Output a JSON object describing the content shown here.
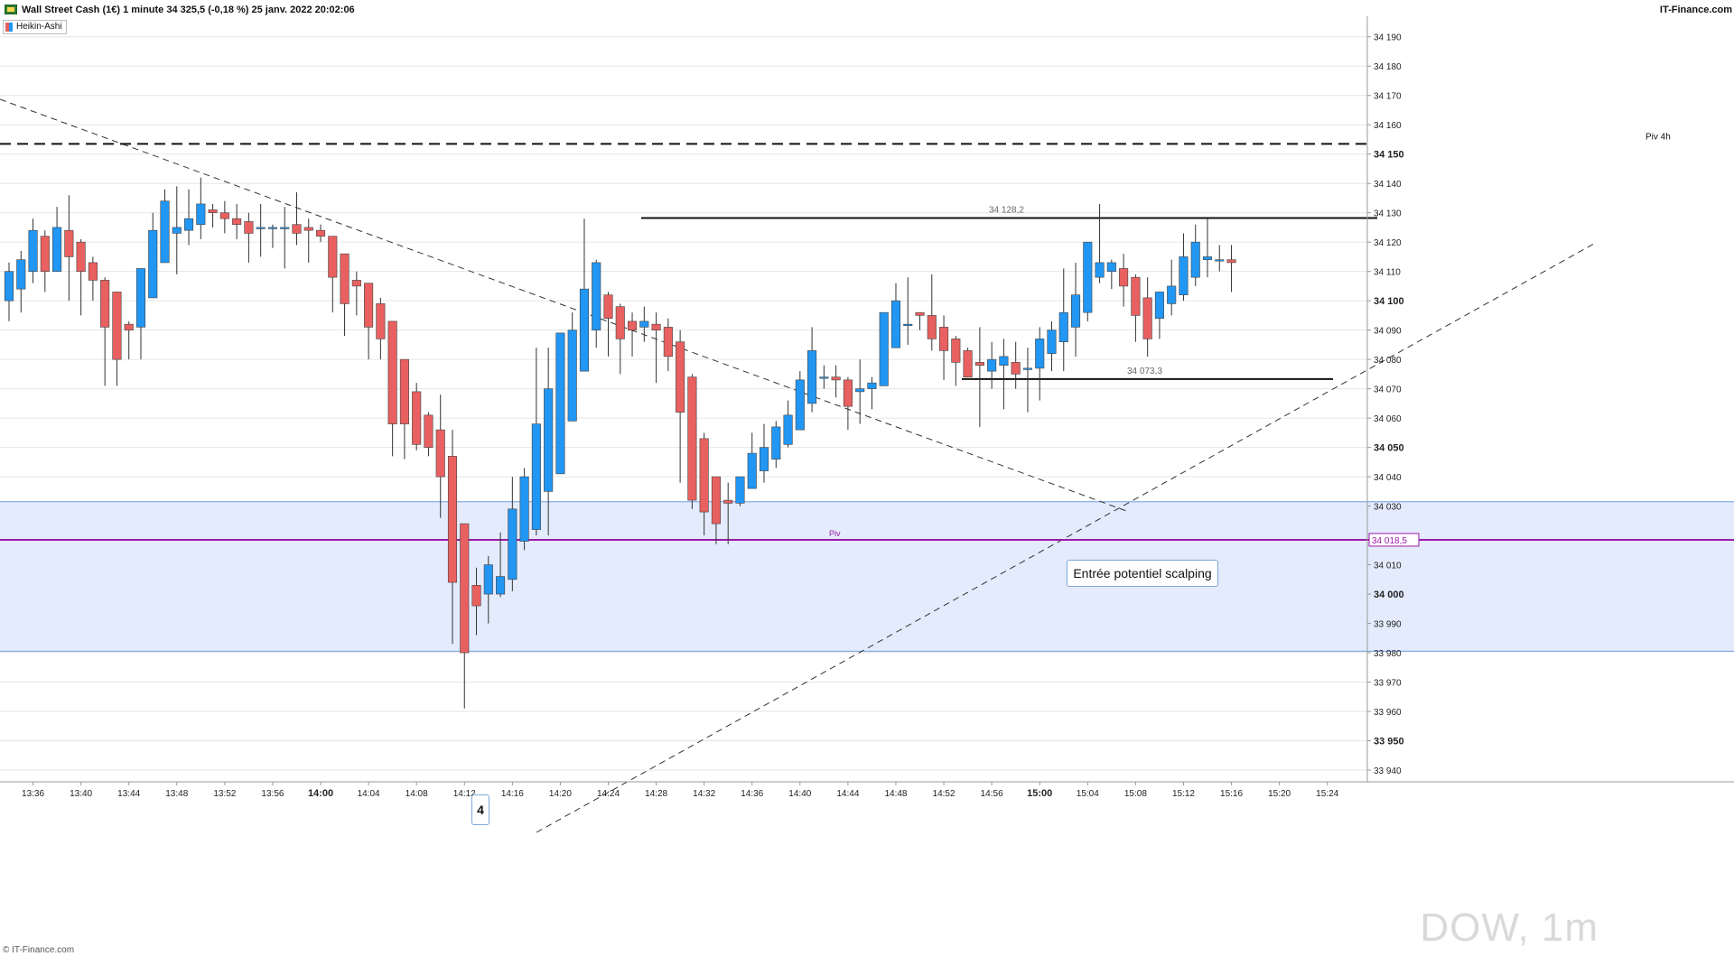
{
  "header": {
    "title": "Wall Street Cash (1€) 1 minute 34 325,5 (-0,18 %) 25 janv. 2022 20:02:06",
    "brand": "IT-Finance.com"
  },
  "legend": {
    "label": "Heikin-Ashi"
  },
  "footer": {
    "brand": "© IT-Finance.com",
    "watermark": "DOW, 1m"
  },
  "colors": {
    "up": "#2196f3",
    "down": "#e86060",
    "wick": "#333333",
    "zone": "#e3ebfc",
    "zone_border": "#6f9be0",
    "pivot_line": "#9c1aa8"
  },
  "annotations": {
    "note": "Entrée potentiel scalping",
    "wave": "4",
    "resistance_label": "34 128,2",
    "support_label": "34 073,3",
    "pivot_small_label": "Piv",
    "piv4h_label": "Piv 4h",
    "current_price_label": "34 018,5"
  },
  "chart_data": {
    "type": "candlestick",
    "style": "Heikin-Ashi",
    "ylim": [
      33936,
      34197
    ],
    "y_ticks": [
      {
        "v": 34190,
        "label": "34 190",
        "bold": false
      },
      {
        "v": 34180,
        "label": "34 180",
        "bold": false
      },
      {
        "v": 34170,
        "label": "34 170",
        "bold": false
      },
      {
        "v": 34160,
        "label": "34 160",
        "bold": false
      },
      {
        "v": 34150,
        "label": "34 150",
        "bold": true
      },
      {
        "v": 34140,
        "label": "34 140",
        "bold": false
      },
      {
        "v": 34130,
        "label": "34 130",
        "bold": false
      },
      {
        "v": 34120,
        "label": "34 120",
        "bold": false
      },
      {
        "v": 34110,
        "label": "34 110",
        "bold": false
      },
      {
        "v": 34100,
        "label": "34 100",
        "bold": true
      },
      {
        "v": 34090,
        "label": "34 090",
        "bold": false
      },
      {
        "v": 34080,
        "label": "34 080",
        "bold": false
      },
      {
        "v": 34070,
        "label": "34 070",
        "bold": false
      },
      {
        "v": 34060,
        "label": "34 060",
        "bold": false
      },
      {
        "v": 34050,
        "label": "34 050",
        "bold": true
      },
      {
        "v": 34040,
        "label": "34 040",
        "bold": false
      },
      {
        "v": 34030,
        "label": "34 030",
        "bold": false
      },
      {
        "v": 34010,
        "label": "34 010",
        "bold": false
      },
      {
        "v": 34000,
        "label": "34 000",
        "bold": true
      },
      {
        "v": 33990,
        "label": "33 990",
        "bold": false
      },
      {
        "v": 33980,
        "label": "33 980",
        "bold": false
      },
      {
        "v": 33970,
        "label": "33 970",
        "bold": false
      },
      {
        "v": 33960,
        "label": "33 960",
        "bold": false
      },
      {
        "v": 33950,
        "label": "33 950",
        "bold": true
      },
      {
        "v": 33940,
        "label": "33 940",
        "bold": false
      }
    ],
    "x_ticks": [
      {
        "label": "13:36",
        "i": 2,
        "bold": false
      },
      {
        "label": "13:40",
        "i": 6,
        "bold": false
      },
      {
        "label": "13:44",
        "i": 10,
        "bold": false
      },
      {
        "label": "13:48",
        "i": 14,
        "bold": false
      },
      {
        "label": "13:52",
        "i": 18,
        "bold": false
      },
      {
        "label": "13:56",
        "i": 22,
        "bold": false
      },
      {
        "label": "14:00",
        "i": 26,
        "bold": true
      },
      {
        "label": "14:04",
        "i": 30,
        "bold": false
      },
      {
        "label": "14:08",
        "i": 34,
        "bold": false
      },
      {
        "label": "14:12",
        "i": 38,
        "bold": false
      },
      {
        "label": "14:16",
        "i": 42,
        "bold": false
      },
      {
        "label": "14:20",
        "i": 46,
        "bold": false
      },
      {
        "label": "14:24",
        "i": 50,
        "bold": false
      },
      {
        "label": "14:28",
        "i": 54,
        "bold": false
      },
      {
        "label": "14:32",
        "i": 58,
        "bold": false
      },
      {
        "label": "14:36",
        "i": 62,
        "bold": false
      },
      {
        "label": "14:40",
        "i": 66,
        "bold": false
      },
      {
        "label": "14:44",
        "i": 70,
        "bold": false
      },
      {
        "label": "14:48",
        "i": 74,
        "bold": false
      },
      {
        "label": "14:52",
        "i": 78,
        "bold": false
      },
      {
        "label": "14:56",
        "i": 82,
        "bold": false
      },
      {
        "label": "15:00",
        "i": 86,
        "bold": true
      },
      {
        "label": "15:04",
        "i": 90,
        "bold": false
      },
      {
        "label": "15:08",
        "i": 94,
        "bold": false
      },
      {
        "label": "15:12",
        "i": 98,
        "bold": false
      },
      {
        "label": "15:16",
        "i": 102,
        "bold": false
      },
      {
        "label": "15:20",
        "i": 106,
        "bold": false
      },
      {
        "label": "15:24",
        "i": 110,
        "bold": false
      }
    ],
    "candles": [
      {
        "o": 34100,
        "c": 34110,
        "h": 34113,
        "l": 34093
      },
      {
        "o": 34104,
        "c": 34114,
        "h": 34117,
        "l": 34096
      },
      {
        "o": 34110,
        "c": 34124,
        "h": 34128,
        "l": 34106
      },
      {
        "o": 34122,
        "c": 34110,
        "h": 34124,
        "l": 34103
      },
      {
        "o": 34110,
        "c": 34125,
        "h": 34132,
        "l": 34110
      },
      {
        "o": 34124,
        "c": 34115,
        "h": 34136,
        "l": 34100
      },
      {
        "o": 34120,
        "c": 34110,
        "h": 34121,
        "l": 34095
      },
      {
        "o": 34113,
        "c": 34107,
        "h": 34115,
        "l": 34100
      },
      {
        "o": 34107,
        "c": 34091,
        "h": 34108,
        "l": 34071
      },
      {
        "o": 34103,
        "c": 34080,
        "h": 34103,
        "l": 34071
      },
      {
        "o": 34092,
        "c": 34090,
        "h": 34093,
        "l": 34080
      },
      {
        "o": 34091,
        "c": 34111,
        "h": 34111,
        "l": 34080
      },
      {
        "o": 34101,
        "c": 34124,
        "h": 34130,
        "l": 34101
      },
      {
        "o": 34113,
        "c": 34134,
        "h": 34138,
        "l": 34113
      },
      {
        "o": 34123,
        "c": 34125,
        "h": 34139,
        "l": 34109
      },
      {
        "o": 34124,
        "c": 34128,
        "h": 34138,
        "l": 34119
      },
      {
        "o": 34126,
        "c": 34133,
        "h": 34142,
        "l": 34121
      },
      {
        "o": 34131,
        "c": 34130,
        "h": 34133,
        "l": 34125
      },
      {
        "o": 34130,
        "c": 34128,
        "h": 34134,
        "l": 34123
      },
      {
        "o": 34128,
        "c": 34126,
        "h": 34133,
        "l": 34121
      },
      {
        "o": 34127,
        "c": 34123,
        "h": 34130,
        "l": 34113
      },
      {
        "o": 34125,
        "c": 34125,
        "h": 34133,
        "l": 34115
      },
      {
        "o": 34125,
        "c": 34125,
        "h": 34126,
        "l": 34118
      },
      {
        "o": 34125,
        "c": 34125,
        "h": 34132,
        "l": 34111
      },
      {
        "o": 34126,
        "c": 34123,
        "h": 34137,
        "l": 34119
      },
      {
        "o": 34125,
        "c": 34124,
        "h": 34128,
        "l": 34113
      },
      {
        "o": 34124,
        "c": 34122,
        "h": 34126,
        "l": 34120
      },
      {
        "o": 34122,
        "c": 34108,
        "h": 34122,
        "l": 34096
      },
      {
        "o": 34116,
        "c": 34099,
        "h": 34116,
        "l": 34088
      },
      {
        "o": 34107,
        "c": 34105,
        "h": 34110,
        "l": 34095
      },
      {
        "o": 34106,
        "c": 34091,
        "h": 34106,
        "l": 34080
      },
      {
        "o": 34099,
        "c": 34087,
        "h": 34101,
        "l": 34080
      },
      {
        "o": 34093,
        "c": 34058,
        "h": 34093,
        "l": 34047
      },
      {
        "o": 34080,
        "c": 34058,
        "h": 34080,
        "l": 34046
      },
      {
        "o": 34069,
        "c": 34051,
        "h": 34072,
        "l": 34049
      },
      {
        "o": 34061,
        "c": 34050,
        "h": 34062,
        "l": 34047
      },
      {
        "o": 34056,
        "c": 34040,
        "h": 34068,
        "l": 34026
      },
      {
        "o": 34047,
        "c": 34004,
        "h": 34056,
        "l": 33983
      },
      {
        "o": 34024,
        "c": 33980,
        "h": 34024,
        "l": 33961
      },
      {
        "o": 34003,
        "c": 33996,
        "h": 34009,
        "l": 33986
      },
      {
        "o": 34000,
        "c": 34010,
        "h": 34013,
        "l": 33990
      },
      {
        "o": 34000,
        "c": 34006,
        "h": 34021,
        "l": 33999
      },
      {
        "o": 34005,
        "c": 34029,
        "h": 34040,
        "l": 34001
      },
      {
        "o": 34018,
        "c": 34040,
        "h": 34043,
        "l": 34015
      },
      {
        "o": 34022,
        "c": 34058,
        "h": 34084,
        "l": 34020
      },
      {
        "o": 34035,
        "c": 34070,
        "h": 34084,
        "l": 34020
      },
      {
        "o": 34041,
        "c": 34089,
        "h": 34089,
        "l": 34041
      },
      {
        "o": 34059,
        "c": 34090,
        "h": 34096,
        "l": 34059
      },
      {
        "o": 34076,
        "c": 34104,
        "h": 34128,
        "l": 34076
      },
      {
        "o": 34090,
        "c": 34113,
        "h": 34114,
        "l": 34084
      },
      {
        "o": 34102,
        "c": 34094,
        "h": 34103,
        "l": 34081
      },
      {
        "o": 34098,
        "c": 34087,
        "h": 34099,
        "l": 34075
      },
      {
        "o": 34093,
        "c": 34090,
        "h": 34096,
        "l": 34081
      },
      {
        "o": 34091,
        "c": 34093,
        "h": 34098,
        "l": 34086
      },
      {
        "o": 34092,
        "c": 34090,
        "h": 34096,
        "l": 34072
      },
      {
        "o": 34091,
        "c": 34081,
        "h": 34094,
        "l": 34076
      },
      {
        "o": 34086,
        "c": 34062,
        "h": 34090,
        "l": 34038
      },
      {
        "o": 34074,
        "c": 34032,
        "h": 34075,
        "l": 34029
      },
      {
        "o": 34053,
        "c": 34028,
        "h": 34055,
        "l": 34020
      },
      {
        "o": 34040,
        "c": 34024,
        "h": 34040,
        "l": 34017
      },
      {
        "o": 34032,
        "c": 34031,
        "h": 34038,
        "l": 34017
      },
      {
        "o": 34031,
        "c": 34040,
        "h": 34040,
        "l": 34030
      },
      {
        "o": 34036,
        "c": 34048,
        "h": 34055,
        "l": 34036
      },
      {
        "o": 34042,
        "c": 34050,
        "h": 34058,
        "l": 34038
      },
      {
        "o": 34046,
        "c": 34057,
        "h": 34059,
        "l": 34043
      },
      {
        "o": 34051,
        "c": 34061,
        "h": 34066,
        "l": 34050
      },
      {
        "o": 34056,
        "c": 34073,
        "h": 34076,
        "l": 34056
      },
      {
        "o": 34065,
        "c": 34083,
        "h": 34091,
        "l": 34062
      },
      {
        "o": 34074,
        "c": 34074,
        "h": 34078,
        "l": 34070
      },
      {
        "o": 34074,
        "c": 34073,
        "h": 34078,
        "l": 34067
      },
      {
        "o": 34073,
        "c": 34064,
        "h": 34074,
        "l": 34056
      },
      {
        "o": 34069,
        "c": 34070,
        "h": 34080,
        "l": 34058
      },
      {
        "o": 34070,
        "c": 34072,
        "h": 34074,
        "l": 34063
      },
      {
        "o": 34071,
        "c": 34096,
        "h": 34096,
        "l": 34071
      },
      {
        "o": 34084,
        "c": 34100,
        "h": 34106,
        "l": 34084
      },
      {
        "o": 34092,
        "c": 34092,
        "h": 34108,
        "l": 34085
      },
      {
        "o": 34096,
        "c": 34095,
        "h": 34096,
        "l": 34090
      },
      {
        "o": 34095,
        "c": 34087,
        "h": 34109,
        "l": 34083
      },
      {
        "o": 34091,
        "c": 34083,
        "h": 34095,
        "l": 34073
      },
      {
        "o": 34087,
        "c": 34079,
        "h": 34088,
        "l": 34071
      },
      {
        "o": 34083,
        "c": 34074,
        "h": 34084,
        "l": 34074
      },
      {
        "o": 34079,
        "c": 34078,
        "h": 34091,
        "l": 34057
      },
      {
        "o": 34076,
        "c": 34080,
        "h": 34086,
        "l": 34070
      },
      {
        "o": 34078,
        "c": 34081,
        "h": 34087,
        "l": 34063
      },
      {
        "o": 34079,
        "c": 34075,
        "h": 34086,
        "l": 34070
      },
      {
        "o": 34077,
        "c": 34077,
        "h": 34084,
        "l": 34062
      },
      {
        "o": 34077,
        "c": 34087,
        "h": 34091,
        "l": 34066
      },
      {
        "o": 34082,
        "c": 34090,
        "h": 34093,
        "l": 34076
      },
      {
        "o": 34086,
        "c": 34096,
        "h": 34111,
        "l": 34076
      },
      {
        "o": 34091,
        "c": 34102,
        "h": 34113,
        "l": 34081
      },
      {
        "o": 34096,
        "c": 34120,
        "h": 34120,
        "l": 34093
      },
      {
        "o": 34108,
        "c": 34113,
        "h": 34133,
        "l": 34106
      },
      {
        "o": 34110,
        "c": 34113,
        "h": 34114,
        "l": 34104
      },
      {
        "o": 34111,
        "c": 34105,
        "h": 34116,
        "l": 34098
      },
      {
        "o": 34108,
        "c": 34095,
        "h": 34109,
        "l": 34086
      },
      {
        "o": 34101,
        "c": 34087,
        "h": 34108,
        "l": 34081
      },
      {
        "o": 34094,
        "c": 34103,
        "h": 34103,
        "l": 34087
      },
      {
        "o": 34099,
        "c": 34105,
        "h": 34114,
        "l": 34095
      },
      {
        "o": 34102,
        "c": 34115,
        "h": 34123,
        "l": 34100
      },
      {
        "o": 34108,
        "c": 34120,
        "h": 34126,
        "l": 34105
      },
      {
        "o": 34114,
        "c": 34115,
        "h": 34128,
        "l": 34108
      },
      {
        "o": 34114,
        "c": 34114,
        "h": 34119,
        "l": 34110
      },
      {
        "o": 34114,
        "c": 34113,
        "h": 34119,
        "l": 34103
      }
    ],
    "levels": [
      {
        "name": "Piv 4h",
        "value": 34153.5,
        "style": "dashed"
      },
      {
        "name": "34 128,2",
        "value": 34128.2,
        "style": "solid"
      },
      {
        "name": "34 073,3",
        "value": 34073.3,
        "style": "solid"
      },
      {
        "name": "34 018,5",
        "value": 34018.5,
        "style": "current"
      }
    ],
    "zone": {
      "from": 33980.5,
      "to": 34031.5
    }
  }
}
